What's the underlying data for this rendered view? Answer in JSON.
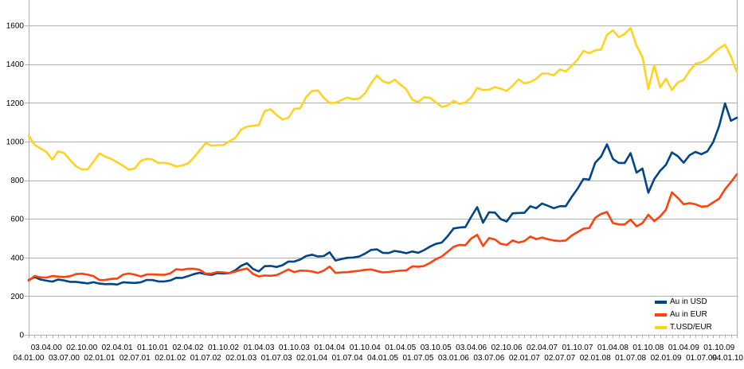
{
  "chart_data": {
    "type": "line",
    "title": "",
    "xlabel": "",
    "ylabel": "",
    "ylim": [
      0,
      1700
    ],
    "yticks": [
      0,
      200,
      400,
      600,
      800,
      1000,
      1200,
      1400,
      1600
    ],
    "grid": "horizontal-only",
    "grid_color": "#b0b0b0",
    "legend_position": "bottom-right-inside",
    "x_labels": [
      "04.01.00",
      "03.04.00",
      "03.07.00",
      "02.10.00",
      "02.01.01",
      "02.04.01",
      "02.07.01",
      "01.10.01",
      "02.01.02",
      "02.04.02",
      "01.07.02",
      "01.10.02",
      "02.01.03",
      "01.04.03",
      "01.07.03",
      "01.10.03",
      "02.01.04",
      "01.04.04",
      "01.07.04",
      "01.10.04",
      "04.01.05",
      "01.04.05",
      "01.07.05",
      "03.10.05",
      "03.01.06",
      "03.04.06",
      "03.07.06",
      "02.10.06",
      "02.01.07",
      "02.04.07",
      "02.07.07",
      "01.10.07",
      "02.01.08",
      "01.04.08",
      "01.07.08",
      "01.10.08",
      "02.01.09",
      "01.04.09",
      "01.07.09",
      "01.10.09",
      "04.01.10"
    ],
    "x_label_stagger": "even-index labels on lower row, odd-index labels on upper row",
    "x_minor_ticks_per_label_interval": 3,
    "series": [
      {
        "name": "Au in USD",
        "color": "#004586",
        "values": [
          283,
          299,
          286,
          280,
          275,
          286,
          281,
          274,
          274,
          270,
          266,
          272,
          265,
          262,
          263,
          260,
          272,
          270,
          268,
          272,
          284,
          283,
          276,
          276,
          281,
          295,
          294,
          303,
          314,
          321,
          313,
          310,
          319,
          317,
          319,
          333,
          357,
          370,
          341,
          328,
          355,
          356,
          351,
          360,
          379,
          379,
          389,
          407,
          414,
          405,
          407,
          427,
          384,
          392,
          398,
          400,
          405,
          420,
          439,
          442,
          424,
          423,
          434,
          429,
          422,
          431,
          424,
          438,
          456,
          470,
          477,
          510,
          550,
          555,
          557,
          611,
          660,
          580,
          634,
          632,
          598,
          586,
          628,
          630,
          631,
          665,
          655,
          679,
          667,
          655,
          665,
          665,
          713,
          755,
          806,
          803,
          890,
          922,
          985,
          910,
          889,
          889,
          940,
          839,
          860,
          735,
          805,
          848,
          880,
          943,
          924,
          890,
          929,
          946,
          934,
          949,
          997,
          1080,
          1197,
          1107,
          1123
        ]
      },
      {
        "name": "Au in EUR",
        "color": "#FF420E",
        "values": [
          280,
          304,
          297,
          296,
          304,
          301,
          299,
          303,
          314,
          316,
          311,
          303,
          283,
          284,
          289,
          291,
          311,
          317,
          311,
          302,
          312,
          312,
          311,
          310,
          318,
          339,
          336,
          342,
          342,
          336,
          316,
          317,
          325,
          323,
          319,
          327,
          336,
          343,
          315,
          302,
          307,
          305,
          309,
          323,
          338,
          324,
          332,
          331,
          328,
          320,
          332,
          353,
          320,
          323,
          324,
          328,
          331,
          336,
          338,
          330,
          323,
          325,
          329,
          332,
          333,
          354,
          352,
          356,
          372,
          391,
          405,
          430,
          455,
          465,
          463,
          498,
          517,
          459,
          500,
          493,
          470,
          465,
          488,
          477,
          485,
          508,
          495,
          503,
          494,
          488,
          485,
          488,
          513,
          531,
          549,
          552,
          605,
          625,
          635,
          578,
          571,
          571,
          596,
          561,
          578,
          621,
          588,
          612,
          648,
          737,
          708,
          675,
          681,
          675,
          663,
          665,
          685,
          704,
          753,
          790,
          830
        ]
      },
      {
        "name": "T.USD/EUR",
        "color": "#FFD320",
        "values": [
          1030,
          983,
          964,
          945,
          906,
          949,
          940,
          904,
          872,
          855,
          856,
          897,
          938,
          921,
          910,
          892,
          874,
          853,
          861,
          900,
          911,
          906,
          888,
          890,
          883,
          870,
          876,
          886,
          917,
          955,
          992,
          978,
          981,
          981,
          1001,
          1018,
          1062,
          1077,
          1081,
          1085,
          1158,
          1166,
          1137,
          1114,
          1122,
          1169,
          1171,
          1229,
          1261,
          1264,
          1226,
          1199,
          1200,
          1214,
          1227,
          1218,
          1222,
          1249,
          1300,
          1341,
          1312,
          1301,
          1320,
          1294,
          1269,
          1216,
          1204,
          1229,
          1226,
          1202,
          1179,
          1186,
          1210,
          1194,
          1202,
          1227,
          1277,
          1266,
          1268,
          1281,
          1273,
          1261,
          1288,
          1321,
          1300,
          1308,
          1324,
          1351,
          1351,
          1342,
          1372,
          1362,
          1391,
          1423,
          1468,
          1456,
          1472,
          1475,
          1552,
          1575,
          1540,
          1556,
          1587,
          1495,
          1437,
          1271,
          1394,
          1280,
          1324,
          1266,
          1305,
          1319,
          1365,
          1402,
          1409,
          1427,
          1456,
          1482,
          1500,
          1440,
          1360
        ]
      }
    ]
  },
  "colors": {
    "background": "#ffffff",
    "grid": "#b0b0b0",
    "text": "#000000"
  }
}
